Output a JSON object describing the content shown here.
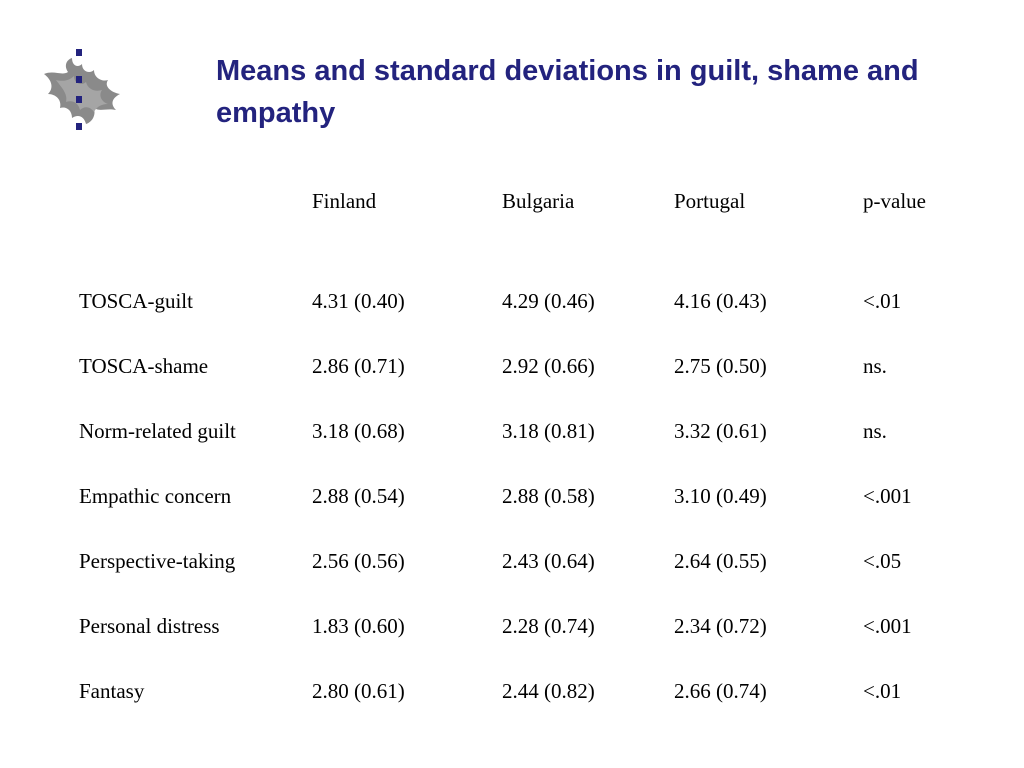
{
  "logo": {
    "icon": "university-flame-logo-icon"
  },
  "title": "Means and standard deviations in guilt, shame and empathy",
  "table": {
    "headers": [
      "",
      "Finland",
      "Bulgaria",
      "Portugal",
      "p-value"
    ],
    "rows": [
      [
        "TOSCA-guilt",
        "4.31 (0.40)",
        "4.29 (0.46)",
        "4.16 (0.43)",
        "<.01"
      ],
      [
        "TOSCA-shame",
        "2.86 (0.71)",
        "2.92 (0.66)",
        "2.75 (0.50)",
        "ns."
      ],
      [
        "Norm-related guilt",
        "3.18 (0.68)",
        "3.18 (0.81)",
        "3.32 (0.61)",
        "ns."
      ],
      [
        "Empathic concern",
        "2.88 (0.54)",
        "2.88 (0.58)",
        "3.10 (0.49)",
        "<.001"
      ],
      [
        "Perspective-taking",
        "2.56 (0.56)",
        "2.43 (0.64)",
        "2.64 (0.55)",
        "<.05"
      ],
      [
        "Personal distress",
        "1.83 (0.60)",
        "2.28 (0.74)",
        "2.34 (0.72)",
        "<.001"
      ],
      [
        "Fantasy",
        "2.80 (0.61)",
        "2.44 (0.82)",
        "2.66 (0.74)",
        "<.01"
      ]
    ]
  }
}
